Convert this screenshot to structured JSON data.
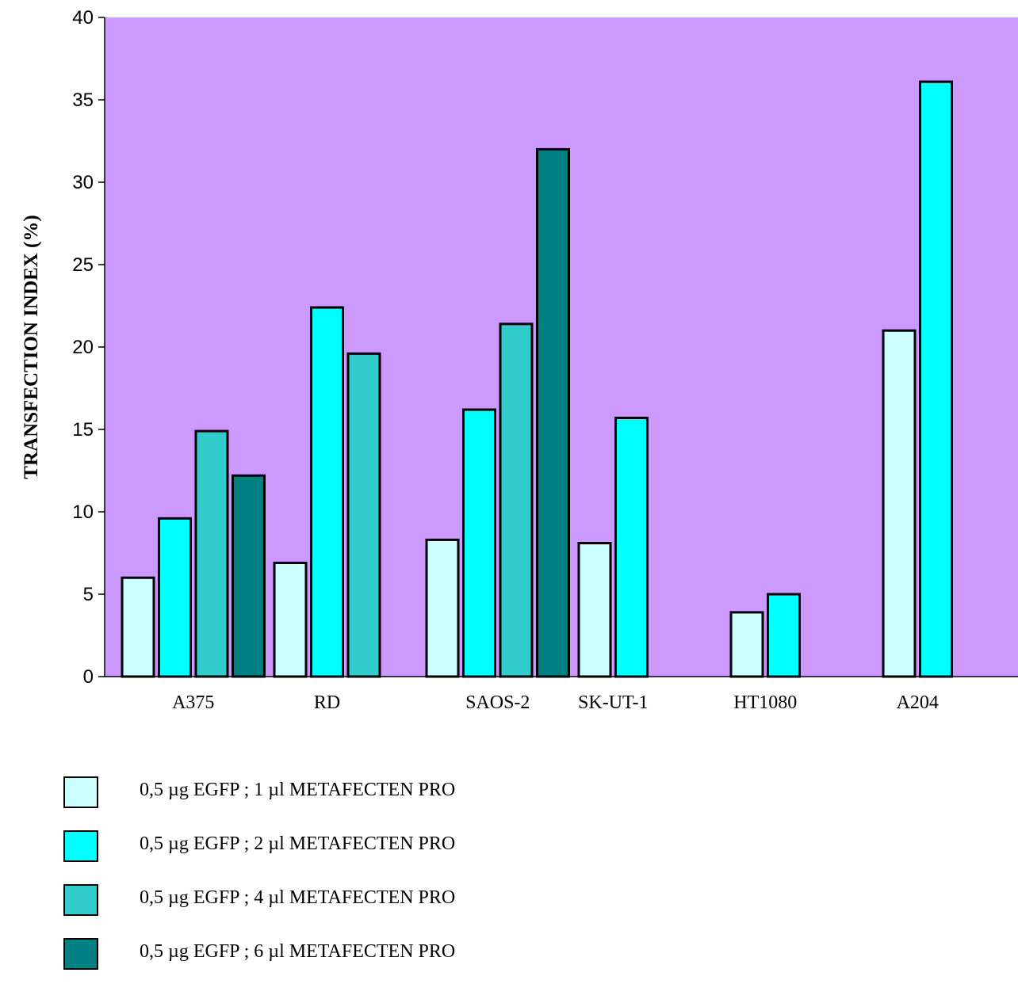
{
  "chart_data": {
    "type": "bar",
    "categories": [
      "A375",
      "RD",
      "SAOS-2",
      "SK-UT-1",
      "HT1080",
      "A204"
    ],
    "series": [
      {
        "name": "0,5 µg EGFP ; 1 µl METAFECTEN PRO",
        "color": "#ccffff",
        "values": [
          6.0,
          6.9,
          8.3,
          8.1,
          3.9,
          21.0
        ]
      },
      {
        "name": "0,5 µg EGFP ; 2 µl METAFECTEN PRO",
        "color": "#00ffff",
        "values": [
          9.6,
          22.4,
          16.2,
          15.7,
          5.0,
          36.1
        ]
      },
      {
        "name": "0,5 µg EGFP ; 4 µl METAFECTEN PRO",
        "color": "#33cccc",
        "values": [
          14.9,
          19.6,
          21.4,
          null,
          null,
          null
        ]
      },
      {
        "name": "0,5 µg EGFP ; 6 µl METAFECTEN PRO",
        "color": "#008080",
        "values": [
          12.2,
          null,
          32.0,
          null,
          null,
          null
        ]
      }
    ],
    "ylabel": "TRANSFECTION  INDEX (%)",
    "xlabel": "",
    "ylim": [
      0,
      40
    ],
    "yticks": [
      0,
      5,
      10,
      15,
      20,
      25,
      30,
      35,
      40
    ],
    "plot_background": "#cc99ff",
    "grid": false,
    "legend_position": "bottom-left"
  }
}
